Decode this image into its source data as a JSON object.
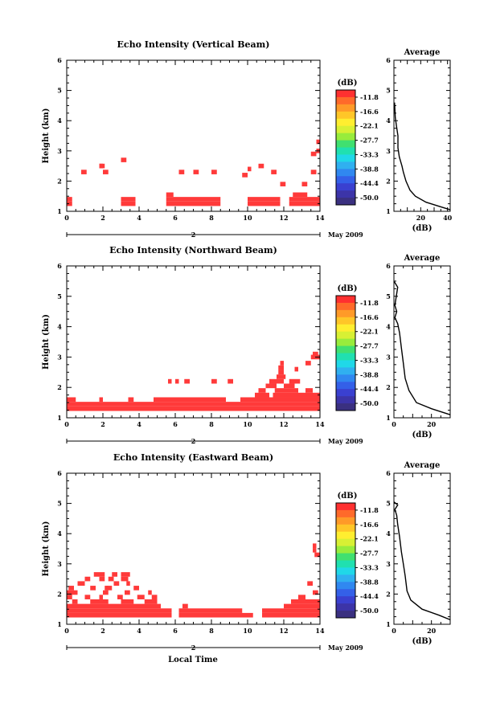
{
  "figure": {
    "xlabel": "Local Time",
    "day_label": "2",
    "date_label": "May 2009"
  },
  "colorbar": {
    "unit": "(dB)",
    "ticks": [
      "-11.8",
      "-16.6",
      "-22.1",
      "-27.7",
      "-33.3",
      "-38.8",
      "-44.4",
      "-50.0"
    ],
    "colors": [
      "#ff3030",
      "#ff6a2a",
      "#ff9a28",
      "#ffc628",
      "#ffee30",
      "#d8f034",
      "#98ec3c",
      "#40e070",
      "#20e0b0",
      "#20d8e8",
      "#30b0f0",
      "#3088f0",
      "#3460e8",
      "#3a40d0",
      "#3c34a8",
      "#3a3080"
    ]
  },
  "chart_data": [
    {
      "type": "heatmap",
      "title": "Echo Intensity (Vertical Beam)",
      "ylabel": "Height (km)",
      "xlim": [
        0,
        14
      ],
      "ylim": [
        1,
        6
      ],
      "xticks": [
        0,
        2,
        4,
        6,
        8,
        10,
        12,
        14
      ],
      "yticks": [
        1,
        2,
        3,
        4,
        5,
        6
      ],
      "cell": {
        "dx": 0.25,
        "dy": 0.15
      },
      "color": "#ff3a3a",
      "bands": [
        [
          1.4,
          0.0,
          0.3
        ],
        [
          1.4,
          3.0,
          3.8
        ],
        [
          1.4,
          5.5,
          8.5
        ],
        [
          1.4,
          10.0,
          11.8
        ],
        [
          1.4,
          12.3,
          14.0
        ],
        [
          1.25,
          0.0,
          0.3
        ],
        [
          1.25,
          3.0,
          3.8
        ],
        [
          1.25,
          5.5,
          8.5
        ],
        [
          1.25,
          10.0,
          11.8
        ],
        [
          1.25,
          12.3,
          14.0
        ],
        [
          1.55,
          5.5,
          5.9
        ],
        [
          1.55,
          12.5,
          13.3
        ],
        [
          2.3,
          0.8,
          1.1
        ],
        [
          2.5,
          1.8,
          2.1
        ],
        [
          2.3,
          2.0,
          2.3
        ],
        [
          2.7,
          3.0,
          3.3
        ],
        [
          2.5,
          1.8,
          2.0
        ],
        [
          2.3,
          6.2,
          6.5
        ],
        [
          2.3,
          7.0,
          7.3
        ],
        [
          2.3,
          8.0,
          8.3
        ],
        [
          2.2,
          9.7,
          10.0
        ],
        [
          2.4,
          10.0,
          10.2
        ],
        [
          2.5,
          10.6,
          10.9
        ],
        [
          2.3,
          11.3,
          11.6
        ],
        [
          1.9,
          11.8,
          12.1
        ],
        [
          1.9,
          13.0,
          13.3
        ],
        [
          2.3,
          13.5,
          13.8
        ],
        [
          2.9,
          13.5,
          13.8
        ],
        [
          3.3,
          13.8,
          14.0
        ],
        [
          3.0,
          13.8,
          14.0
        ]
      ],
      "average": {
        "xlim": [
          0,
          42
        ],
        "xticks": [
          20,
          40
        ],
        "xlabel": "(dB)",
        "profile": [
          [
            42,
            1.05
          ],
          [
            35,
            1.15
          ],
          [
            24,
            1.3
          ],
          [
            16,
            1.5
          ],
          [
            12,
            1.7
          ],
          [
            9,
            2.0
          ],
          [
            7,
            2.3
          ],
          [
            6,
            2.5
          ],
          [
            4,
            2.8
          ],
          [
            3,
            3.1
          ],
          [
            3,
            3.5
          ],
          [
            2,
            3.8
          ],
          [
            1,
            4.1
          ],
          [
            0.5,
            4.6
          ]
        ]
      }
    },
    {
      "type": "heatmap",
      "title": "Echo Intensity (Northward Beam)",
      "ylabel": "Height (km)",
      "xlim": [
        0,
        14
      ],
      "ylim": [
        1,
        6
      ],
      "xticks": [
        0,
        2,
        4,
        6,
        8,
        10,
        12,
        14
      ],
      "yticks": [
        1,
        2,
        3,
        4,
        5,
        6
      ],
      "cell": {
        "dx": 0.25,
        "dy": 0.15
      },
      "color": "#ff3a3a",
      "bands": [
        [
          1.3,
          0.0,
          14.0
        ],
        [
          1.45,
          0.0,
          14.0
        ],
        [
          1.6,
          0.0,
          0.5
        ],
        [
          1.6,
          4.8,
          8.8
        ],
        [
          1.6,
          9.6,
          14.0
        ],
        [
          1.75,
          10.4,
          11.2
        ],
        [
          1.75,
          11.4,
          14.0
        ],
        [
          1.9,
          10.6,
          11.0
        ],
        [
          1.9,
          11.5,
          12.8
        ],
        [
          1.9,
          13.2,
          13.6
        ],
        [
          2.05,
          11.0,
          11.6
        ],
        [
          2.05,
          12.0,
          12.6
        ],
        [
          2.2,
          11.2,
          12.0
        ],
        [
          2.2,
          12.3,
          12.9
        ],
        [
          2.35,
          11.6,
          12.1
        ],
        [
          2.5,
          11.7,
          12.0
        ],
        [
          2.65,
          11.7,
          12.0
        ],
        [
          2.8,
          11.8,
          12.0
        ],
        [
          2.2,
          5.6,
          5.8
        ],
        [
          2.2,
          6.0,
          6.2
        ],
        [
          2.2,
          6.5,
          6.8
        ],
        [
          2.2,
          8.0,
          8.3
        ],
        [
          2.2,
          8.9,
          9.2
        ],
        [
          1.6,
          1.8,
          2.0
        ],
        [
          1.6,
          3.4,
          3.7
        ],
        [
          2.6,
          12.6,
          12.8
        ],
        [
          2.8,
          13.2,
          13.5
        ],
        [
          3.0,
          13.5,
          14.0
        ],
        [
          3.1,
          13.6,
          13.9
        ]
      ],
      "average": {
        "xlim": [
          0,
          30
        ],
        "xticks": [
          0,
          20
        ],
        "xlabel": "(dB)",
        "profile": [
          [
            30,
            1.1
          ],
          [
            20,
            1.3
          ],
          [
            12,
            1.5
          ],
          [
            8,
            1.9
          ],
          [
            6,
            2.3
          ],
          [
            5,
            2.8
          ],
          [
            4,
            3.3
          ],
          [
            3,
            3.8
          ],
          [
            2,
            4.1
          ],
          [
            0.5,
            4.3
          ],
          [
            1.5,
            4.5
          ],
          [
            0.5,
            4.7
          ],
          [
            2,
            5.3
          ],
          [
            0,
            5.5
          ]
        ]
      }
    },
    {
      "type": "heatmap",
      "title": "Echo Intensity (Eastward Beam)",
      "ylabel": "Height (km)",
      "xlim": [
        0,
        14
      ],
      "ylim": [
        1,
        6
      ],
      "xticks": [
        0,
        2,
        4,
        6,
        8,
        10,
        12,
        14
      ],
      "yticks": [
        1,
        2,
        3,
        4,
        5,
        6
      ],
      "cell": {
        "dx": 0.25,
        "dy": 0.15
      },
      "color": "#ff3a3a",
      "bands": [
        [
          1.3,
          0.0,
          5.8
        ],
        [
          1.45,
          0.0,
          5.8
        ],
        [
          1.3,
          6.2,
          10.3
        ],
        [
          1.45,
          6.2,
          9.7
        ],
        [
          1.3,
          10.8,
          14.0
        ],
        [
          1.45,
          10.8,
          14.0
        ],
        [
          1.6,
          0.0,
          5.2
        ],
        [
          1.6,
          6.4,
          6.7
        ],
        [
          1.6,
          12.0,
          14.0
        ],
        [
          1.75,
          0.3,
          0.6
        ],
        [
          1.75,
          1.3,
          2.3
        ],
        [
          1.75,
          3.0,
          3.7
        ],
        [
          1.75,
          4.3,
          5.0
        ],
        [
          1.75,
          12.4,
          14.0
        ],
        [
          1.9,
          0.0,
          0.3
        ],
        [
          1.9,
          1.0,
          1.3
        ],
        [
          1.9,
          1.8,
          2.0
        ],
        [
          1.9,
          2.8,
          3.1
        ],
        [
          1.9,
          3.9,
          4.3
        ],
        [
          1.9,
          4.7,
          5.0
        ],
        [
          1.9,
          12.8,
          13.2
        ],
        [
          2.05,
          0.0,
          0.6
        ],
        [
          2.05,
          2.0,
          2.3
        ],
        [
          2.05,
          3.2,
          3.5
        ],
        [
          2.05,
          4.5,
          4.7
        ],
        [
          2.05,
          13.6,
          13.9
        ],
        [
          2.2,
          0.1,
          0.4
        ],
        [
          2.2,
          1.3,
          1.6
        ],
        [
          2.2,
          2.2,
          2.5
        ],
        [
          2.2,
          3.7,
          4.0
        ],
        [
          2.35,
          0.6,
          1.0
        ],
        [
          2.35,
          2.6,
          2.9
        ],
        [
          2.35,
          3.3,
          3.5
        ],
        [
          2.35,
          13.3,
          13.6
        ],
        [
          2.5,
          1.0,
          1.3
        ],
        [
          2.5,
          1.8,
          2.1
        ],
        [
          2.5,
          2.3,
          2.6
        ],
        [
          2.5,
          3.0,
          3.4
        ],
        [
          2.65,
          1.5,
          2.1
        ],
        [
          2.65,
          3.0,
          3.5
        ],
        [
          2.65,
          2.5,
          2.8
        ],
        [
          2.2,
          2.1,
          2.3
        ],
        [
          3.3,
          13.7,
          14.0
        ],
        [
          3.45,
          13.6,
          13.8
        ],
        [
          3.6,
          13.6,
          13.8
        ]
      ],
      "average": {
        "xlim": [
          0,
          30
        ],
        "xticks": [
          0,
          20
        ],
        "xlabel": "(dB)",
        "profile": [
          [
            30,
            1.15
          ],
          [
            24,
            1.3
          ],
          [
            15,
            1.5
          ],
          [
            9,
            1.8
          ],
          [
            7,
            2.1
          ],
          [
            6,
            2.6
          ],
          [
            5,
            3.0
          ],
          [
            4,
            3.4
          ],
          [
            3,
            3.9
          ],
          [
            2,
            4.3
          ],
          [
            1.5,
            4.6
          ],
          [
            0.5,
            4.8
          ],
          [
            2,
            4.95
          ],
          [
            0,
            5.05
          ]
        ]
      }
    }
  ]
}
